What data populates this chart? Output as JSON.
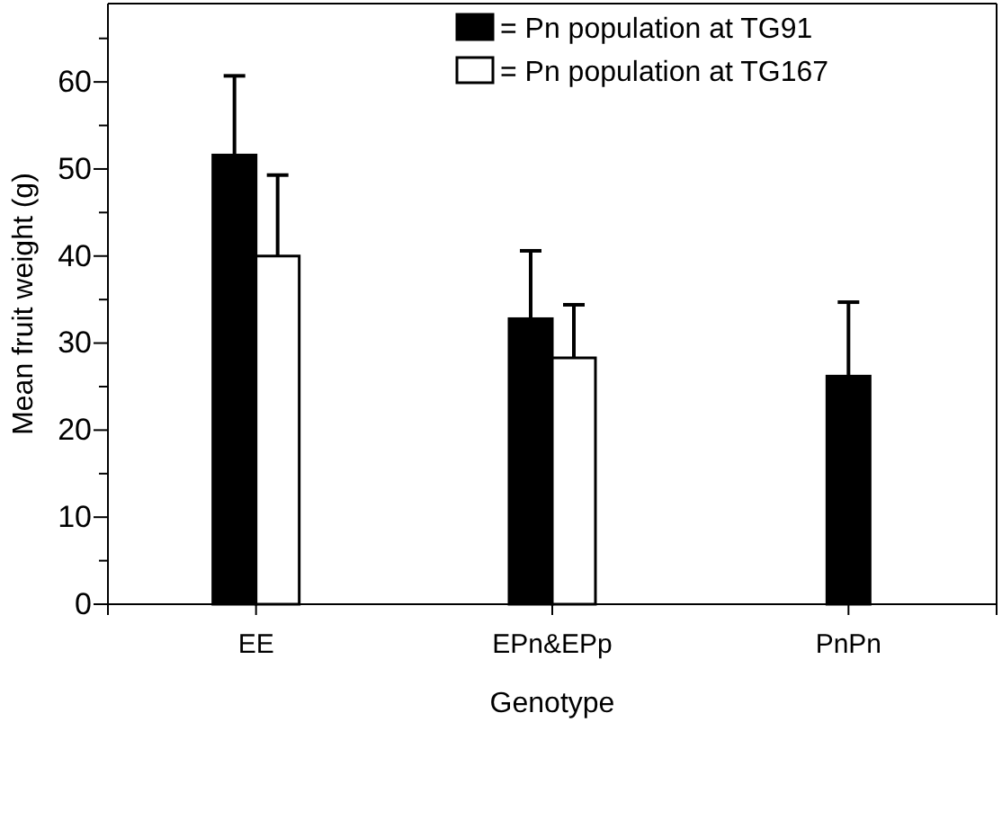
{
  "chart_data": {
    "type": "bar",
    "xlabel": "Genotype",
    "ylabel": "Mean fruit weight (g)",
    "categories": [
      "EE",
      "EPn&EPp",
      "PnPn"
    ],
    "series": [
      {
        "name": "= Pn population at TG91",
        "color": "#000000",
        "values": [
          51.6,
          32.8,
          26.2
        ],
        "errors": [
          [
            51.6,
            60.7
          ],
          [
            32.8,
            40.6
          ],
          [
            26.2,
            34.7
          ]
        ]
      },
      {
        "name": "= Pn population at TG167",
        "color": "#ffffff",
        "values": [
          40.0,
          28.3,
          null
        ],
        "errors": [
          [
            40.0,
            49.3
          ],
          [
            28.3,
            34.4
          ],
          null
        ]
      }
    ],
    "ylim": [
      0,
      69
    ],
    "yticks": [
      0,
      {
        "value": 5,
        "label": null
      },
      10,
      {
        "value": 15,
        "label": null
      },
      20,
      {
        "value": 25,
        "label": null
      },
      30,
      {
        "value": 35,
        "label": null
      },
      40,
      {
        "value": 45,
        "label": null
      },
      50,
      {
        "value": 55,
        "label": null
      },
      60,
      {
        "value": 65,
        "label": null
      }
    ],
    "legend": "top right",
    "grid": false
  }
}
